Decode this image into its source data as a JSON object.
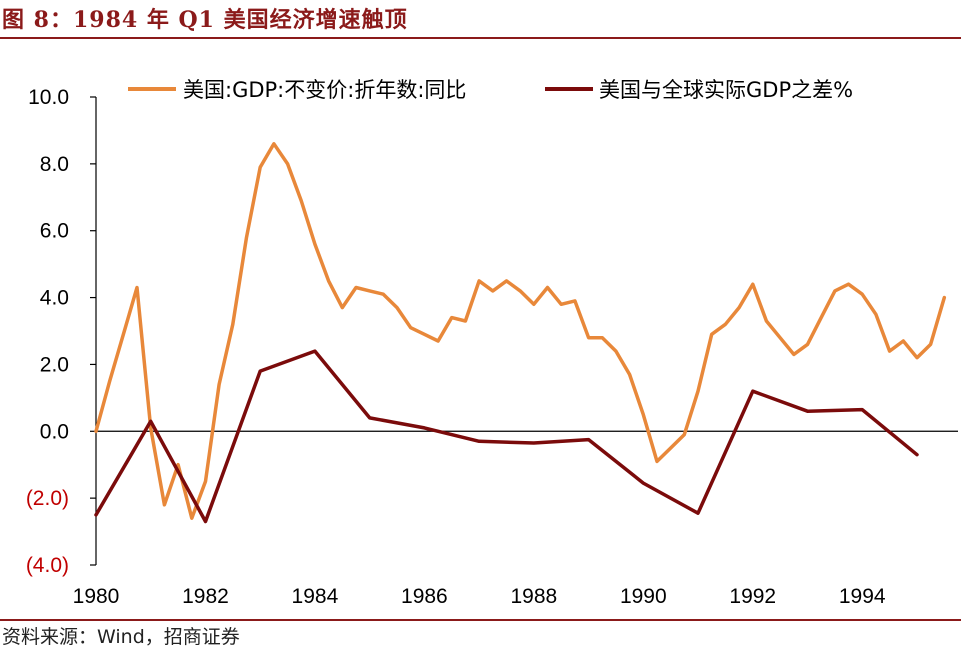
{
  "header": {
    "title": "图 8：1984 年 Q1 美国经济增速触顶"
  },
  "footer": {
    "source": "资料来源：Wind，招商证券"
  },
  "colors": {
    "accent": "#8B1A1A",
    "series1": "#E8883A",
    "series2": "#7B0B0B",
    "negative_tick": "#C00000"
  },
  "chart_data": {
    "type": "line",
    "title": "",
    "xlabel": "",
    "ylabel": "",
    "xlim": [
      1980.0,
      1995.75
    ],
    "ylim": [
      -4.0,
      10.0
    ],
    "yticks": [
      {
        "value": 10,
        "label": "10.0"
      },
      {
        "value": 8,
        "label": "8.0"
      },
      {
        "value": 6,
        "label": "6.0"
      },
      {
        "value": 4,
        "label": "4.0"
      },
      {
        "value": 2,
        "label": "2.0"
      },
      {
        "value": 0,
        "label": "0.0"
      },
      {
        "value": -2,
        "label": "(2.0)"
      },
      {
        "value": -4,
        "label": "(4.0)"
      }
    ],
    "xticks": [
      {
        "value": 1980,
        "label": "1980"
      },
      {
        "value": 1982,
        "label": "1982"
      },
      {
        "value": 1984,
        "label": "1984"
      },
      {
        "value": 1986,
        "label": "1986"
      },
      {
        "value": 1988,
        "label": "1988"
      },
      {
        "value": 1990,
        "label": "1990"
      },
      {
        "value": 1992,
        "label": "1992"
      },
      {
        "value": 1994,
        "label": "1994"
      }
    ],
    "grid": false,
    "legend": "top",
    "series": [
      {
        "name": "美国:GDP:不变价:折年数:同比",
        "color": "#E8883A",
        "x": [
          1980.0,
          1980.25,
          1980.5,
          1980.75,
          1981.0,
          1981.25,
          1981.5,
          1981.75,
          1982.0,
          1982.25,
          1982.5,
          1982.75,
          1983.0,
          1983.25,
          1983.5,
          1983.75,
          1984.0,
          1984.25,
          1984.5,
          1984.75,
          1985.0,
          1985.25,
          1985.5,
          1985.75,
          1986.0,
          1986.25,
          1986.5,
          1986.75,
          1987.0,
          1987.25,
          1987.5,
          1987.75,
          1988.0,
          1988.25,
          1988.5,
          1988.75,
          1989.0,
          1989.25,
          1989.5,
          1989.75,
          1990.0,
          1990.25,
          1990.5,
          1990.75,
          1991.0,
          1991.25,
          1991.5,
          1991.75,
          1992.0,
          1992.25,
          1992.5,
          1992.75,
          1993.0,
          1993.25,
          1993.5,
          1993.75,
          1994.0,
          1994.25,
          1994.5,
          1994.75,
          1995.0,
          1995.25,
          1995.5
        ],
        "values": [
          0.0,
          1.5,
          2.9,
          4.3,
          0.1,
          -2.2,
          -1.0,
          -2.6,
          -1.5,
          1.4,
          3.2,
          5.8,
          7.9,
          8.6,
          8.0,
          6.9,
          5.6,
          4.5,
          3.7,
          4.3,
          4.2,
          4.1,
          3.7,
          3.1,
          2.9,
          2.7,
          3.4,
          3.3,
          4.5,
          4.2,
          4.5,
          4.2,
          3.8,
          4.3,
          3.8,
          3.9,
          2.8,
          2.8,
          2.4,
          1.7,
          0.5,
          -0.9,
          -0.5,
          -0.1,
          1.2,
          2.9,
          3.2,
          3.7,
          4.4,
          3.3,
          2.8,
          2.3,
          2.6,
          3.4,
          4.2,
          4.4,
          4.1,
          3.5,
          2.4,
          2.7,
          2.2,
          2.6,
          4.0
        ]
      },
      {
        "name": "美国与全球实际GDP之差%",
        "color": "#7B0B0B",
        "x": [
          1980,
          1981,
          1982,
          1983,
          1984,
          1985,
          1986,
          1987,
          1988,
          1989,
          1990,
          1991,
          1992,
          1993,
          1994,
          1995
        ],
        "values": [
          -2.5,
          0.3,
          -2.7,
          1.8,
          2.4,
          0.4,
          0.1,
          -0.3,
          -0.35,
          -0.25,
          -1.55,
          -2.45,
          1.2,
          0.6,
          0.65,
          -0.7
        ]
      }
    ]
  }
}
